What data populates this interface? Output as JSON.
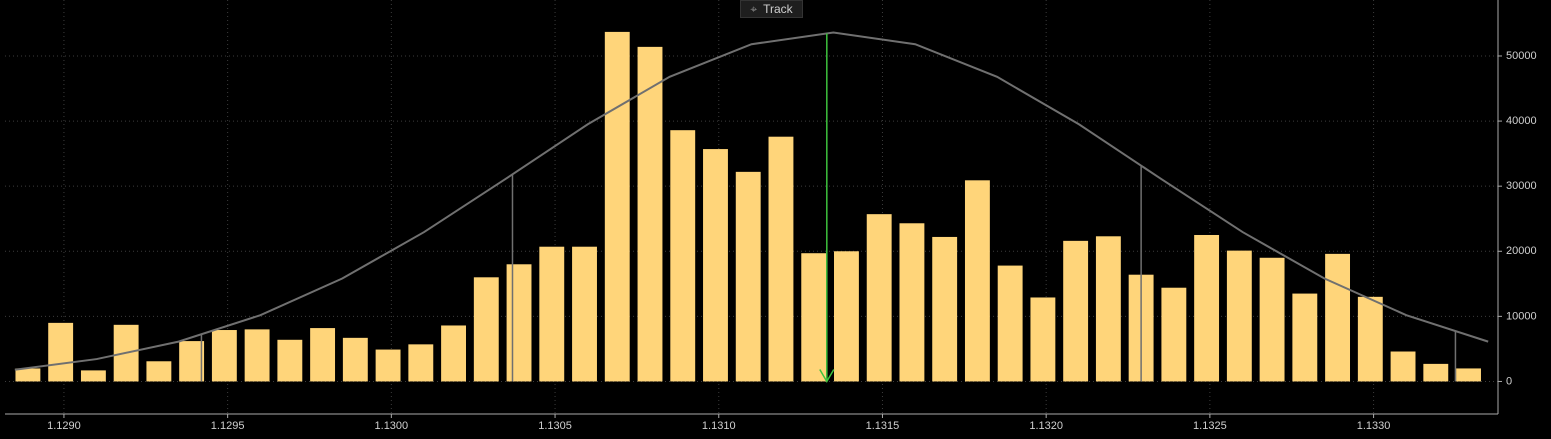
{
  "toolbar": {
    "button": "Track"
  },
  "chart_data": {
    "type": "bar",
    "x": [
      1.12889,
      1.12899,
      1.12909,
      1.12919,
      1.12929,
      1.12939,
      1.12949,
      1.12959,
      1.12969,
      1.12979,
      1.12989,
      1.12999,
      1.13009,
      1.13019,
      1.13029,
      1.13039,
      1.13049,
      1.13059,
      1.13069,
      1.13079,
      1.13089,
      1.13099,
      1.13109,
      1.13119,
      1.13129,
      1.13139,
      1.13149,
      1.13159,
      1.13169,
      1.13179,
      1.13189,
      1.13199,
      1.13209,
      1.13219,
      1.13229,
      1.13239,
      1.13249,
      1.13259,
      1.13269,
      1.13279,
      1.13289,
      1.13299,
      1.13309,
      1.13319,
      1.13329
    ],
    "values": [
      2000,
      9000,
      1700,
      8700,
      3100,
      6200,
      7900,
      8000,
      6400,
      8200,
      6700,
      4900,
      5700,
      8600,
      16000,
      18000,
      20700,
      20700,
      53700,
      51400,
      38600,
      35700,
      32200,
      37600,
      19700,
      20000,
      25700,
      24300,
      22200,
      30900,
      17800,
      12900,
      21600,
      22300,
      16400,
      14400,
      22500,
      20100,
      19000,
      13500,
      19600,
      13000,
      4600,
      2700,
      2000
    ],
    "color": "#ffd57a",
    "curve_x": [
      1.12885,
      1.1291,
      1.12935,
      1.1296,
      1.12985,
      1.1301,
      1.13035,
      1.1306,
      1.13085,
      1.1311,
      1.13135,
      1.1316,
      1.13185,
      1.1321,
      1.13235,
      1.1326,
      1.13285,
      1.1331,
      1.13335
    ],
    "curve_values": [
      1800,
      3440,
      6120,
      10180,
      15810,
      22950,
      31150,
      39510,
      46800,
      51810,
      53600,
      51810,
      46800,
      39510,
      31150,
      22950,
      15810,
      10180,
      6120
    ],
    "curve_color": "#707070",
    "sigma_lines": [
      1.12942,
      1.13037,
      1.13229,
      1.13325
    ],
    "mean": 1.13133,
    "mean_color": "#3ec23e",
    "xlim": [
      1.12882,
      1.13338
    ],
    "ylim": [
      -5000,
      58600
    ],
    "xticks": [
      {
        "value": 1.129,
        "label": "1.1290"
      },
      1.1295,
      {
        "value": 1.13,
        "label": "1.1300"
      },
      1.1305,
      {
        "value": 1.131,
        "label": "1.1310"
      },
      1.1315,
      {
        "value": 1.132,
        "label": "1.1320"
      },
      1.1325,
      {
        "value": 1.133,
        "label": "1.1330"
      }
    ],
    "yticks": [
      0,
      10000,
      20000,
      30000,
      40000,
      50000
    ],
    "grid": true
  }
}
